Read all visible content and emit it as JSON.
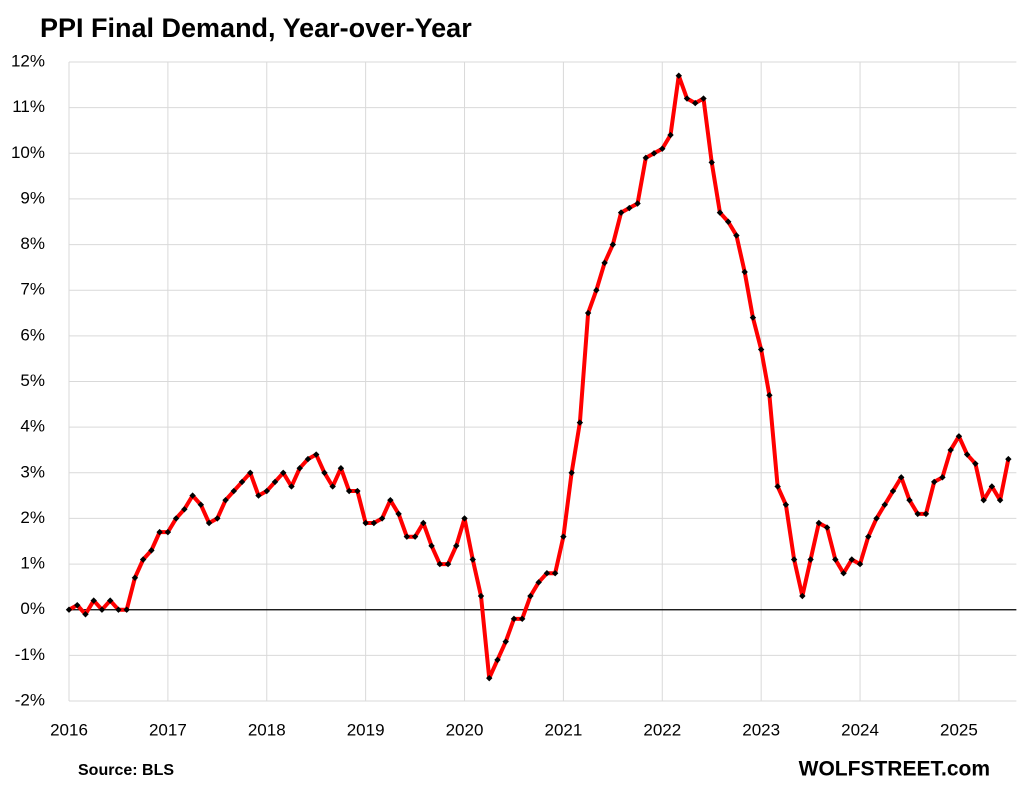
{
  "chart_data": {
    "type": "line",
    "title": "PPI Final Demand,  Year-over-Year",
    "source": "Source: BLS",
    "watermark": "WOLFSTREET.com",
    "categories": [
      "2016",
      null,
      null,
      null,
      null,
      null,
      null,
      null,
      null,
      null,
      null,
      null,
      "2017",
      null,
      null,
      null,
      null,
      null,
      null,
      null,
      null,
      null,
      null,
      null,
      "2018",
      null,
      null,
      null,
      null,
      null,
      null,
      null,
      null,
      null,
      null,
      null,
      "2019",
      null,
      null,
      null,
      null,
      null,
      null,
      null,
      null,
      null,
      null,
      null,
      "2020",
      null,
      null,
      null,
      null,
      null,
      null,
      null,
      null,
      null,
      null,
      null,
      "2021",
      null,
      null,
      null,
      null,
      null,
      null,
      null,
      null,
      null,
      null,
      null,
      "2022",
      null,
      null,
      null,
      null,
      null,
      null,
      null,
      null,
      null,
      null,
      null,
      "2023",
      null,
      null,
      null,
      null,
      null,
      null,
      null,
      null,
      null,
      null,
      null,
      "2024",
      null,
      null,
      null,
      null,
      null,
      null,
      null,
      null,
      null,
      null,
      null,
      "2025",
      null,
      null,
      null,
      null,
      null,
      null
    ],
    "values": [
      0.0,
      0.1,
      -0.1,
      0.2,
      0.0,
      0.2,
      0.0,
      0.0,
      0.7,
      1.1,
      1.3,
      1.7,
      1.7,
      2.0,
      2.2,
      2.5,
      2.3,
      1.9,
      2.0,
      2.4,
      2.6,
      2.8,
      3.0,
      2.5,
      2.6,
      2.8,
      3.0,
      2.7,
      3.1,
      3.3,
      3.4,
      3.0,
      2.7,
      3.1,
      2.6,
      2.6,
      1.9,
      1.9,
      2.0,
      2.4,
      2.1,
      1.6,
      1.6,
      1.9,
      1.4,
      1.0,
      1.0,
      1.4,
      2.0,
      1.1,
      0.3,
      -1.5,
      -1.1,
      -0.7,
      -0.2,
      -0.2,
      0.3,
      0.6,
      0.8,
      0.8,
      1.6,
      3.0,
      4.1,
      6.5,
      7.0,
      7.6,
      8.0,
      8.7,
      8.8,
      8.9,
      9.9,
      10.0,
      10.1,
      10.4,
      11.7,
      11.2,
      11.1,
      11.2,
      9.8,
      8.7,
      8.5,
      8.2,
      7.4,
      6.4,
      5.7,
      4.7,
      2.7,
      2.3,
      1.1,
      0.3,
      1.1,
      1.9,
      1.8,
      1.1,
      0.8,
      1.1,
      1.0,
      1.6,
      2.0,
      2.3,
      2.6,
      2.9,
      2.4,
      2.1,
      2.1,
      2.8,
      2.9,
      3.5,
      3.8,
      3.4,
      3.2,
      2.4,
      2.7,
      2.4,
      3.3
    ],
    "color": "#ff0000",
    "marker_color": "#000000",
    "ylim": [
      -2,
      12
    ],
    "yticks": [
      {
        "value": -2,
        "label": "-2%"
      },
      {
        "value": -1,
        "label": "-1%"
      },
      {
        "value": 0,
        "label": "0%"
      },
      {
        "value": 1,
        "label": "1%"
      },
      {
        "value": 2,
        "label": "2%"
      },
      {
        "value": 3,
        "label": "3%"
      },
      {
        "value": 4,
        "label": "4%"
      },
      {
        "value": 5,
        "label": "5%"
      },
      {
        "value": 6,
        "label": "6%"
      },
      {
        "value": 7,
        "label": "7%"
      },
      {
        "value": 8,
        "label": "8%"
      },
      {
        "value": 9,
        "label": "9%"
      },
      {
        "value": 10,
        "label": "10%"
      },
      {
        "value": 11,
        "label": "11%"
      },
      {
        "value": 12,
        "label": "12%"
      }
    ],
    "grid": true
  }
}
